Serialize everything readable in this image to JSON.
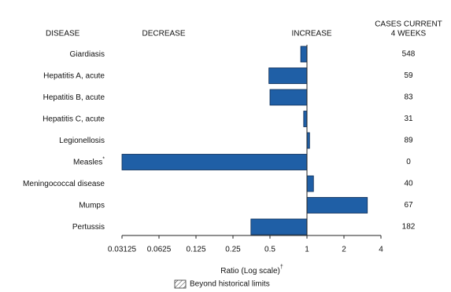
{
  "chart_data": {
    "type": "bar",
    "orientation": "horizontal",
    "log_scale": true,
    "headers": {
      "disease": "DISEASE",
      "decrease": "DECREASE",
      "increase": "INCREASE",
      "cases": [
        "CASES CURRENT",
        "4 WEEKS"
      ]
    },
    "categories": [
      "Giardiasis",
      "Hepatitis A, acute",
      "Hepatitis B, acute",
      "Hepatitis C, acute",
      "Legionellosis",
      "Measles",
      "Meningococcal disease",
      "Mumps",
      "Pertussis"
    ],
    "category_marks": [
      null,
      null,
      null,
      null,
      null,
      "*",
      null,
      null,
      null
    ],
    "values": [
      0.89,
      0.49,
      0.5,
      0.94,
      1.05,
      0.03125,
      1.13,
      3.1,
      0.35
    ],
    "cases": [
      548,
      59,
      83,
      31,
      89,
      0,
      40,
      67,
      182
    ],
    "color": "#1f5fa6",
    "xlim": [
      0.03125,
      4
    ],
    "xticks": [
      0.03125,
      0.0625,
      0.125,
      0.25,
      0.5,
      1,
      2,
      4
    ],
    "x_label": "Ratio (Log scale)",
    "x_label_mark": "†",
    "legend_label": "Beyond historical limits"
  }
}
